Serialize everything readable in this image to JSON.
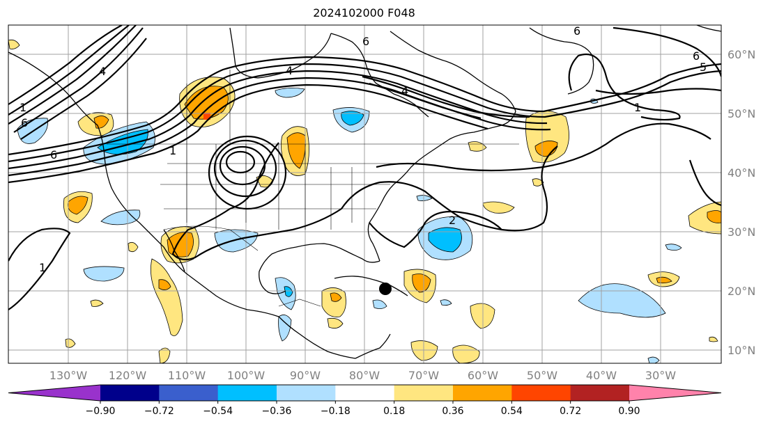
{
  "title": "2024102000 F048",
  "lon_labels": [
    "130°W",
    "120°W",
    "110°W",
    "100°W",
    "90°W",
    "80°W",
    "70°W",
    "60°W",
    "50°W",
    "40°W",
    "30°W"
  ],
  "lat_labels": [
    "60°N",
    "50°N",
    "40°N",
    "30°N",
    "20°N",
    "10°N"
  ],
  "colorbar": {
    "ticks": [
      "−0.90",
      "−0.72",
      "−0.54",
      "−0.36",
      "−0.18",
      "0.18",
      "0.36",
      "0.54",
      "0.72",
      "0.90"
    ],
    "colors": [
      "#9932cc",
      "#00008b",
      "#3a5fcd",
      "#00bfff",
      "#b0e0ff",
      "#ffffff",
      "#ffe680",
      "#ffa500",
      "#ff4500",
      "#b22222",
      "#ff82ab"
    ]
  },
  "contour_labels": [
    {
      "text": "1",
      "where": "NE Pacific west edge"
    },
    {
      "text": "6",
      "where": "NE Pacific"
    },
    {
      "text": "4",
      "where": "Alaska coast"
    },
    {
      "text": "6",
      "where": "Pacific jet entrance"
    },
    {
      "text": "1",
      "where": "Pacific Northwest"
    },
    {
      "text": "4",
      "where": "Hudson Bay"
    },
    {
      "text": "6",
      "where": "Hudson Bay north"
    },
    {
      "text": "4",
      "where": "Labrador"
    },
    {
      "text": "1",
      "where": "North Atlantic"
    },
    {
      "text": "6",
      "where": "Greenland east"
    },
    {
      "text": "5",
      "where": "Greenland east"
    },
    {
      "text": "6",
      "where": "Greenland"
    },
    {
      "text": "2",
      "where": "Western Atlantic"
    },
    {
      "text": "1",
      "where": "Eastern Pacific subtropics"
    }
  ]
}
